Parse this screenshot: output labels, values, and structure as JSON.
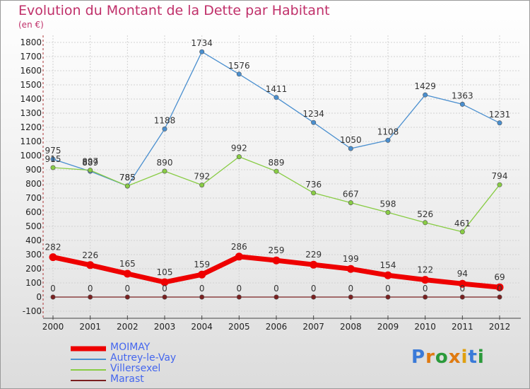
{
  "title": "Evolution du Montant de la Dette par Habitant",
  "subtitle": "(en €)",
  "logo": {
    "text": "Proxiti",
    "colors": [
      "#3a7ad8",
      "#e07a10",
      "#2a9a3a",
      "#e07a10",
      "#e0a010",
      "#3a7ad8",
      "#2a9a3a"
    ]
  },
  "chart_data": {
    "type": "line",
    "title": "Evolution du Montant de la Dette par Habitant",
    "ylabel": "(en €)",
    "xlabel": "",
    "x": [
      "2000",
      "2001",
      "2002",
      "2003",
      "2004",
      "2005",
      "2006",
      "2007",
      "2008",
      "2009",
      "2010",
      "2011",
      "2012"
    ],
    "ylim": [
      -100,
      1800
    ],
    "yticks": [
      "-100",
      "0",
      "100",
      "200",
      "300",
      "400",
      "500",
      "600",
      "700",
      "800",
      "900",
      "1000",
      "1100",
      "1200",
      "1300",
      "1400",
      "1500",
      "1600",
      "1700",
      "1800"
    ],
    "grid": true,
    "legend_position": "bottom-left",
    "series": [
      {
        "name": "MOIMAY",
        "color": "#ee0000",
        "thick": true,
        "values": [
          282,
          226,
          165,
          105,
          159,
          286,
          259,
          229,
          199,
          154,
          122,
          94,
          69
        ],
        "labels": [
          "282",
          "226",
          "165",
          "105",
          "159",
          "286",
          "259",
          "229",
          "199",
          "154",
          "122",
          "94",
          "69"
        ]
      },
      {
        "name": "Autrey-le-Vay",
        "color": "#4a8fcf",
        "thick": false,
        "values": [
          975,
          889,
          785,
          1188,
          1734,
          1576,
          1411,
          1234,
          1050,
          1108,
          1429,
          1363,
          1231
        ],
        "labels": [
          "975",
          "889",
          "785",
          "1188",
          "1734",
          "1576",
          "1411",
          "1234",
          "1050",
          "1108",
          "1429",
          "1363",
          "1231"
        ]
      },
      {
        "name": "Villersexel",
        "color": "#88cc44",
        "thick": false,
        "values": [
          915,
          897,
          785,
          890,
          792,
          992,
          889,
          736,
          667,
          598,
          526,
          461,
          794
        ],
        "labels": [
          "915",
          "897",
          "785",
          "890",
          "792",
          "992",
          "889",
          "736",
          "667",
          "598",
          "526",
          "461",
          "794"
        ]
      },
      {
        "name": "Marast",
        "color": "#7a2020",
        "thick": false,
        "values": [
          0,
          0,
          0,
          0,
          0,
          0,
          0,
          0,
          0,
          0,
          0,
          0,
          0
        ],
        "labels": [
          "0",
          "0",
          "0",
          "0",
          "0",
          "0",
          "0",
          "0",
          "0",
          "0",
          "0",
          "0",
          "0"
        ]
      }
    ]
  }
}
